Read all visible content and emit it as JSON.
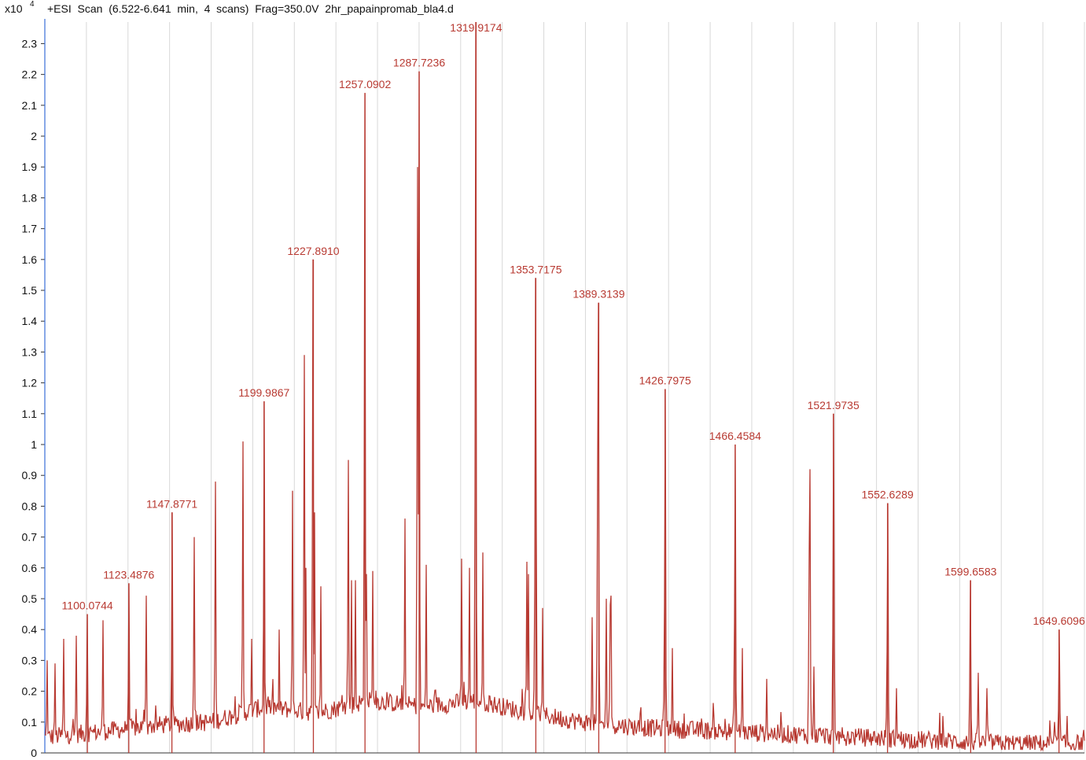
{
  "header": {
    "multiplier": "x10",
    "exponent": "4",
    "title": "+ESI  Scan  (6.522-6.641  min,  4  scans)  Frag=350.0V  2hr_papainpromab_bla4.d"
  },
  "colors": {
    "trace": "#b83a32",
    "grid": "#d8d8d8",
    "axis": "#3a6fd8",
    "text": "#111111"
  },
  "chart_data": {
    "type": "line",
    "title": "+ESI  Scan  (6.522-6.641  min,  4  scans)  Frag=350.0V  2hr_papainpromab_bla4.d",
    "xlabel": "",
    "ylabel": "",
    "y_multiplier": "x10 4",
    "xlim": [
      1076,
      1664
    ],
    "ylim": [
      0,
      2.37
    ],
    "grid": true,
    "y_ticks": [
      "0",
      "0.1",
      "0.2",
      "0.3",
      "0.4",
      "0.5",
      "0.6",
      "0.7",
      "0.8",
      "0.9",
      "1",
      "1.1",
      "1.2",
      "1.3",
      "1.4",
      "1.5",
      "1.6",
      "1.7",
      "1.8",
      "1.9",
      "2",
      "2.1",
      "2.2",
      "2.3"
    ],
    "baseline": [
      [
        1076,
        0.05
      ],
      [
        1110,
        0.07
      ],
      [
        1140,
        0.09
      ],
      [
        1170,
        0.1
      ],
      [
        1200,
        0.15
      ],
      [
        1230,
        0.13
      ],
      [
        1260,
        0.17
      ],
      [
        1290,
        0.15
      ],
      [
        1320,
        0.17
      ],
      [
        1350,
        0.13
      ],
      [
        1380,
        0.1
      ],
      [
        1420,
        0.08
      ],
      [
        1460,
        0.07
      ],
      [
        1500,
        0.06
      ],
      [
        1540,
        0.05
      ],
      [
        1580,
        0.04
      ],
      [
        1620,
        0.03
      ],
      [
        1664,
        0.03
      ]
    ],
    "peaks": [
      {
        "x": 1100.0744,
        "y": 0.45,
        "label": "1100.0744"
      },
      {
        "x": 1123.4876,
        "y": 0.55,
        "label": "1123.4876"
      },
      {
        "x": 1147.8771,
        "y": 0.78,
        "label": "1147.8771"
      },
      {
        "x": 1199.9867,
        "y": 1.14,
        "label": "1199.9867"
      },
      {
        "x": 1227.891,
        "y": 1.6,
        "label": "1227.8910"
      },
      {
        "x": 1257.0902,
        "y": 2.14,
        "label": "1257.0902"
      },
      {
        "x": 1287.7236,
        "y": 2.21,
        "label": "1287.7236"
      },
      {
        "x": 1319.9174,
        "y": 2.37,
        "label": "1319.9174"
      },
      {
        "x": 1353.7175,
        "y": 1.54,
        "label": "1353.7175"
      },
      {
        "x": 1389.3139,
        "y": 1.46,
        "label": "1389.3139"
      },
      {
        "x": 1426.7975,
        "y": 1.18,
        "label": "1426.7975"
      },
      {
        "x": 1466.4584,
        "y": 1.0,
        "label": "1466.4584"
      },
      {
        "x": 1521.9735,
        "y": 1.1,
        "label": "1521.9735"
      },
      {
        "x": 1552.6289,
        "y": 0.81,
        "label": "1552.6289"
      },
      {
        "x": 1599.6583,
        "y": 0.56,
        "label": "1599.6583"
      },
      {
        "x": 1649.6096,
        "y": 0.4,
        "label": "1649.6096"
      },
      {
        "x": 1086.5,
        "y": 0.37
      },
      {
        "x": 1093.8,
        "y": 0.38
      },
      {
        "x": 1109.0,
        "y": 0.43
      },
      {
        "x": 1082.0,
        "y": 0.29
      },
      {
        "x": 1077.5,
        "y": 0.3
      },
      {
        "x": 1133.2,
        "y": 0.51
      },
      {
        "x": 1132.0,
        "y": 0.14
      },
      {
        "x": 1160.3,
        "y": 0.7
      },
      {
        "x": 1172.5,
        "y": 0.88
      },
      {
        "x": 1188.2,
        "y": 1.01
      },
      {
        "x": 1193.0,
        "y": 0.37
      },
      {
        "x": 1208.5,
        "y": 0.4
      },
      {
        "x": 1216.2,
        "y": 0.85
      },
      {
        "x": 1222.8,
        "y": 1.29
      },
      {
        "x": 1223.8,
        "y": 0.6
      },
      {
        "x": 1228.6,
        "y": 0.78
      },
      {
        "x": 1232.2,
        "y": 0.54
      },
      {
        "x": 1247.8,
        "y": 0.95
      },
      {
        "x": 1249.5,
        "y": 0.56
      },
      {
        "x": 1251.6,
        "y": 0.56
      },
      {
        "x": 1257.8,
        "y": 0.58
      },
      {
        "x": 1261.5,
        "y": 0.59
      },
      {
        "x": 1279.5,
        "y": 0.76
      },
      {
        "x": 1286.8,
        "y": 1.9
      },
      {
        "x": 1291.5,
        "y": 0.61
      },
      {
        "x": 1311.7,
        "y": 0.63
      },
      {
        "x": 1316.0,
        "y": 0.6
      },
      {
        "x": 1323.6,
        "y": 0.65
      },
      {
        "x": 1348.5,
        "y": 0.62
      },
      {
        "x": 1349.6,
        "y": 0.58
      },
      {
        "x": 1354.2,
        "y": 0.7
      },
      {
        "x": 1357.6,
        "y": 0.47
      },
      {
        "x": 1385.6,
        "y": 0.44
      },
      {
        "x": 1388.9,
        "y": 0.95
      },
      {
        "x": 1393.6,
        "y": 0.5
      },
      {
        "x": 1396.4,
        "y": 0.51
      },
      {
        "x": 1395.9,
        "y": 0.48
      },
      {
        "x": 1426.4,
        "y": 0.48
      },
      {
        "x": 1431.1,
        "y": 0.34
      },
      {
        "x": 1466.0,
        "y": 0.42
      },
      {
        "x": 1470.3,
        "y": 0.34
      },
      {
        "x": 1484.4,
        "y": 0.24
      },
      {
        "x": 1508.8,
        "y": 0.92
      },
      {
        "x": 1508.3,
        "y": 0.65
      },
      {
        "x": 1510.8,
        "y": 0.28
      },
      {
        "x": 1522.6,
        "y": 0.34
      },
      {
        "x": 1552.4,
        "y": 0.33
      },
      {
        "x": 1557.6,
        "y": 0.21
      },
      {
        "x": 1582.0,
        "y": 0.13
      },
      {
        "x": 1603.8,
        "y": 0.26
      },
      {
        "x": 1608.8,
        "y": 0.21
      },
      {
        "x": 1650.0,
        "y": 0.13
      },
      {
        "x": 1654.2,
        "y": 0.12
      }
    ]
  }
}
